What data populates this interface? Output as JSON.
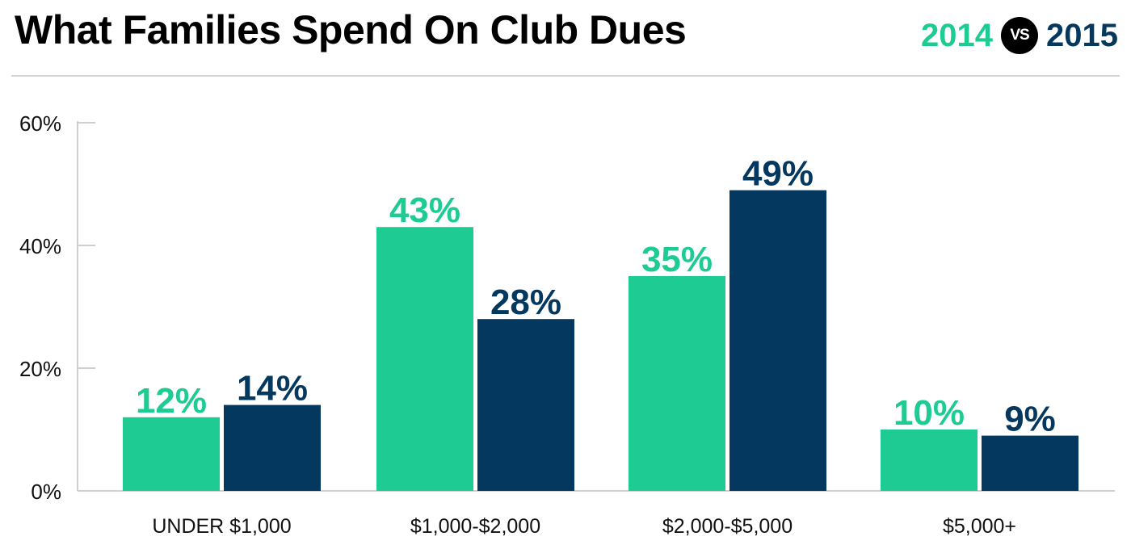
{
  "header": {
    "title": "What Families Spend On Club Dues",
    "legend_2014": "2014",
    "legend_vs": "VS",
    "legend_2015": "2015"
  },
  "colors": {
    "series_2014": "#1ecb93",
    "series_2015": "#05385e"
  },
  "chart_data": {
    "type": "bar",
    "title": "What Families Spend On Club Dues",
    "categories": [
      "UNDER $1,000",
      "$1,000-$2,000",
      "$2,000-$5,000",
      "$5,000+"
    ],
    "series": [
      {
        "name": "2014",
        "values": [
          12,
          43,
          35,
          10
        ],
        "labels": [
          "12%",
          "43%",
          "35%",
          "10%"
        ]
      },
      {
        "name": "2015",
        "values": [
          14,
          28,
          49,
          9
        ],
        "labels": [
          "14%",
          "28%",
          "49%",
          "9%"
        ]
      }
    ],
    "ylim": [
      0,
      60
    ],
    "yticks": [
      0,
      20,
      40,
      60
    ],
    "ytick_labels": [
      "0%",
      "20%",
      "40%",
      "60%"
    ],
    "xlabel": "",
    "ylabel": "",
    "legend": "top-right",
    "grid": false
  }
}
